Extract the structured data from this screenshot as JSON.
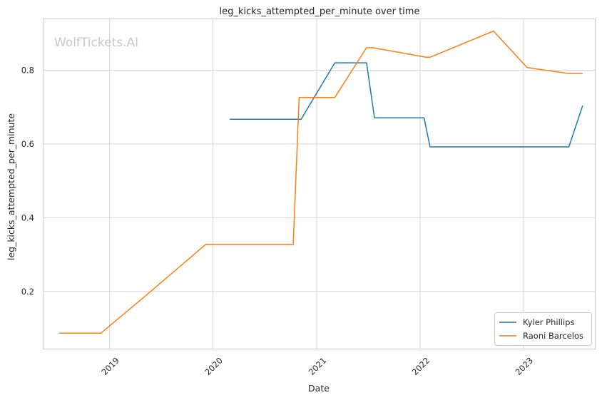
{
  "chart_data": {
    "type": "line",
    "title": "leg_kicks_attempted_per_minute over time",
    "xlabel": "Date",
    "ylabel": "leg_kicks_attempted_per_minute",
    "watermark": "WolfTickets.AI",
    "x_ticks": [
      "2019",
      "2020",
      "2021",
      "2022",
      "2023"
    ],
    "y_ticks": [
      "0.2",
      "0.4",
      "0.6",
      "0.8"
    ],
    "xlim": [
      "2018-05-10",
      "2023-09-10"
    ],
    "ylim": [
      0.045,
      0.94
    ],
    "grid": true,
    "legend_position": "bottom-right",
    "series": [
      {
        "name": "Kyler Phillips",
        "color": "#1f77b4",
        "points": [
          [
            "2020-02-29",
            0.667
          ],
          [
            "2020-11-07",
            0.667
          ],
          [
            "2021-03-06",
            0.82
          ],
          [
            "2021-06-26",
            0.82
          ],
          [
            "2021-07-24",
            0.671
          ],
          [
            "2022-01-15",
            0.671
          ],
          [
            "2022-02-05",
            0.592
          ],
          [
            "2023-06-10",
            0.592
          ],
          [
            "2023-07-29",
            0.704
          ]
        ]
      },
      {
        "name": "Raoni Barcelos",
        "color": "#ff7f0e",
        "points": [
          [
            "2018-07-07",
            0.087
          ],
          [
            "2018-12-01",
            0.087
          ],
          [
            "2019-05-18",
            0.195
          ],
          [
            "2019-12-07",
            0.328
          ],
          [
            "2020-10-10",
            0.328
          ],
          [
            "2020-10-31",
            0.726
          ],
          [
            "2021-03-06",
            0.726
          ],
          [
            "2021-06-26",
            0.861
          ],
          [
            "2021-07-17",
            0.861
          ],
          [
            "2022-01-22",
            0.835
          ],
          [
            "2022-02-05",
            0.835
          ],
          [
            "2022-09-17",
            0.906
          ],
          [
            "2023-01-14",
            0.807
          ],
          [
            "2023-06-10",
            0.791
          ],
          [
            "2023-07-29",
            0.791
          ]
        ]
      }
    ]
  }
}
